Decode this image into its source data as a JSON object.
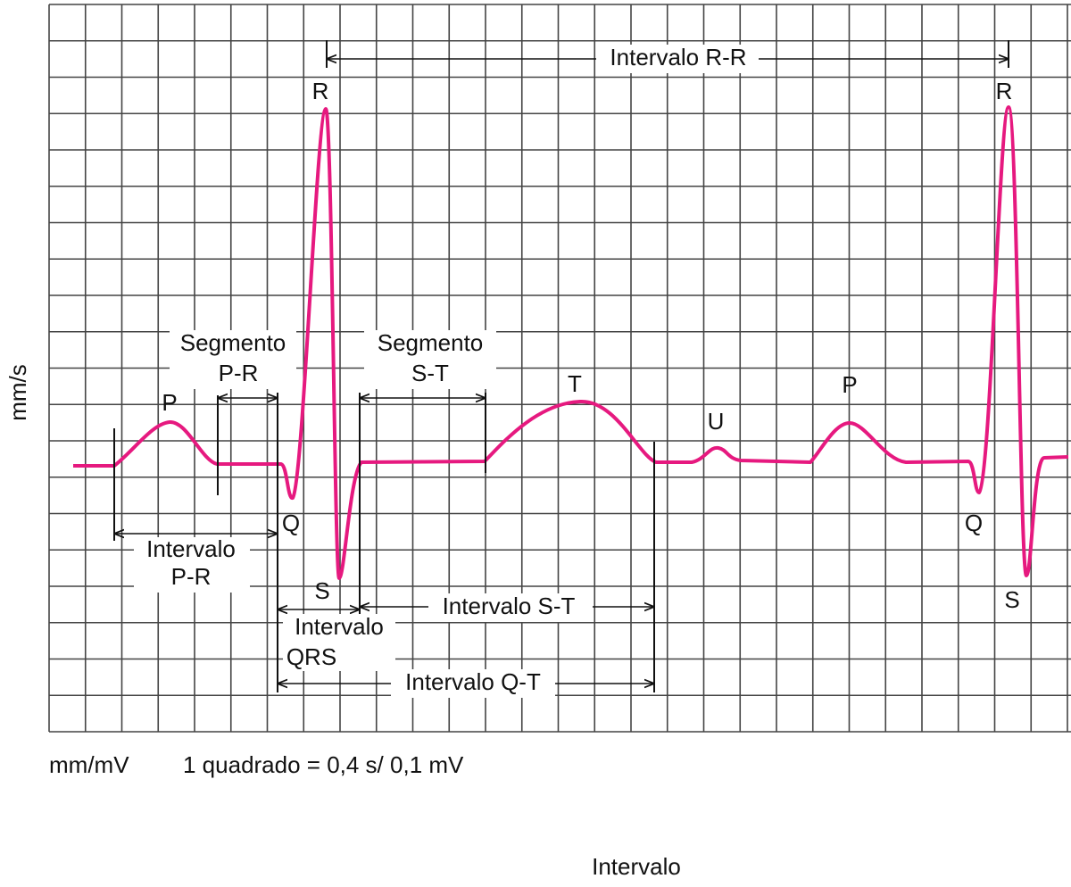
{
  "y_axis_label": "mm/s",
  "interval_r_r": "Intervalo R-R",
  "wave_labels": [
    "P",
    "Q",
    "R",
    "S",
    "T",
    "U",
    "P",
    "Q",
    "R",
    "S"
  ],
  "segment_p_r": [
    "Segmento",
    "P-R"
  ],
  "segment_s_t": [
    "Segmento",
    "S-T"
  ],
  "interval_p_r": [
    "Intervalo",
    "P-R"
  ],
  "interval_qrs": [
    "Intervalo",
    "QRS"
  ],
  "interval_s_t": "Intervalo S-T",
  "interval_q_t": "Intervalo Q-T",
  "footer": {
    "unit": "mm/mV",
    "scale": "1 quadrado = 0,4 s/ 0,1 mV",
    "caption": "Intervalo"
  }
}
